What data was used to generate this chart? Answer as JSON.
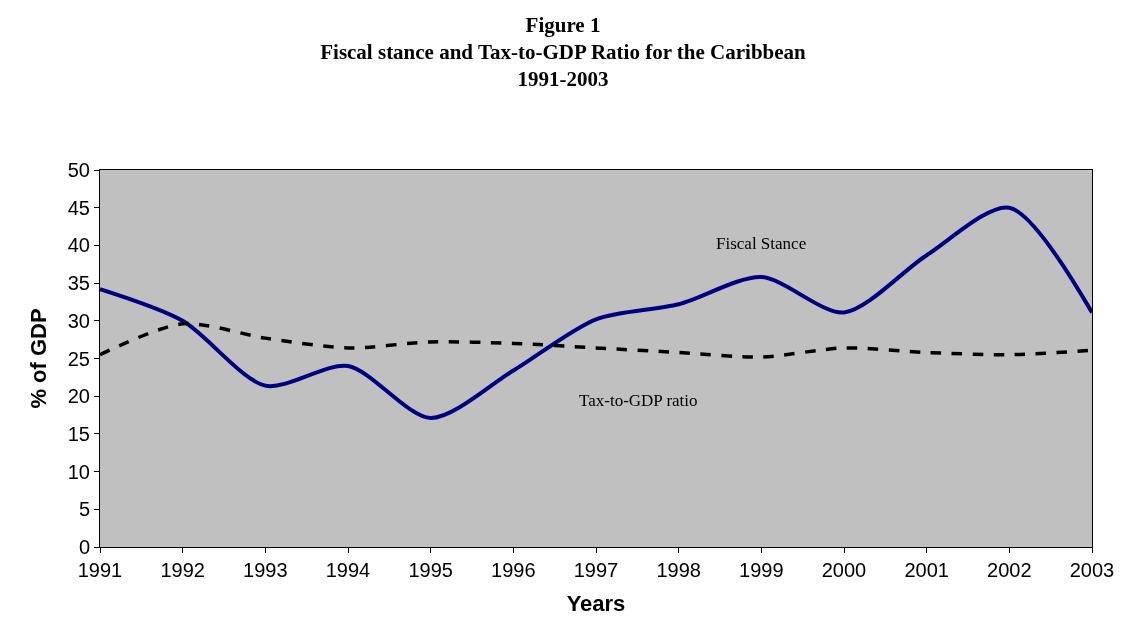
{
  "chart_data": {
    "type": "line",
    "title": "Figure 1\nFiscal stance and Tax-to-GDP Ratio for the Caribbean\n1991-2003",
    "xlabel": "Years",
    "ylabel": "% of GDP",
    "x": [
      1991,
      1992,
      1993,
      1994,
      1995,
      1996,
      1997,
      1998,
      1999,
      2000,
      2001,
      2002,
      2003
    ],
    "series": [
      {
        "name": "Fiscal Stance",
        "color": "#000080",
        "line_style": "solid",
        "values": [
          34.2,
          30,
          21.4,
          24,
          17.1,
          23.4,
          30.2,
          32.2,
          35.8,
          31.1,
          38.7,
          45,
          31.1
        ]
      },
      {
        "name": "Tax-to-GDP ratio",
        "color": "#000000",
        "line_style": "dashed",
        "values": [
          25.5,
          29.6,
          27.7,
          26.4,
          27.2,
          27,
          26.4,
          25.8,
          25.2,
          26.4,
          25.8,
          25.5,
          26.1
        ]
      }
    ],
    "xlim": [
      1991,
      2003
    ],
    "xticks": [
      1991,
      1992,
      1993,
      1994,
      1995,
      1996,
      1997,
      1998,
      1999,
      2000,
      2001,
      2002,
      2003
    ],
    "ylim": [
      0,
      50
    ],
    "yticks": [
      0,
      5,
      10,
      15,
      20,
      25,
      30,
      35,
      40,
      45,
      50
    ],
    "grid": false,
    "legend": false,
    "marker": "none"
  }
}
